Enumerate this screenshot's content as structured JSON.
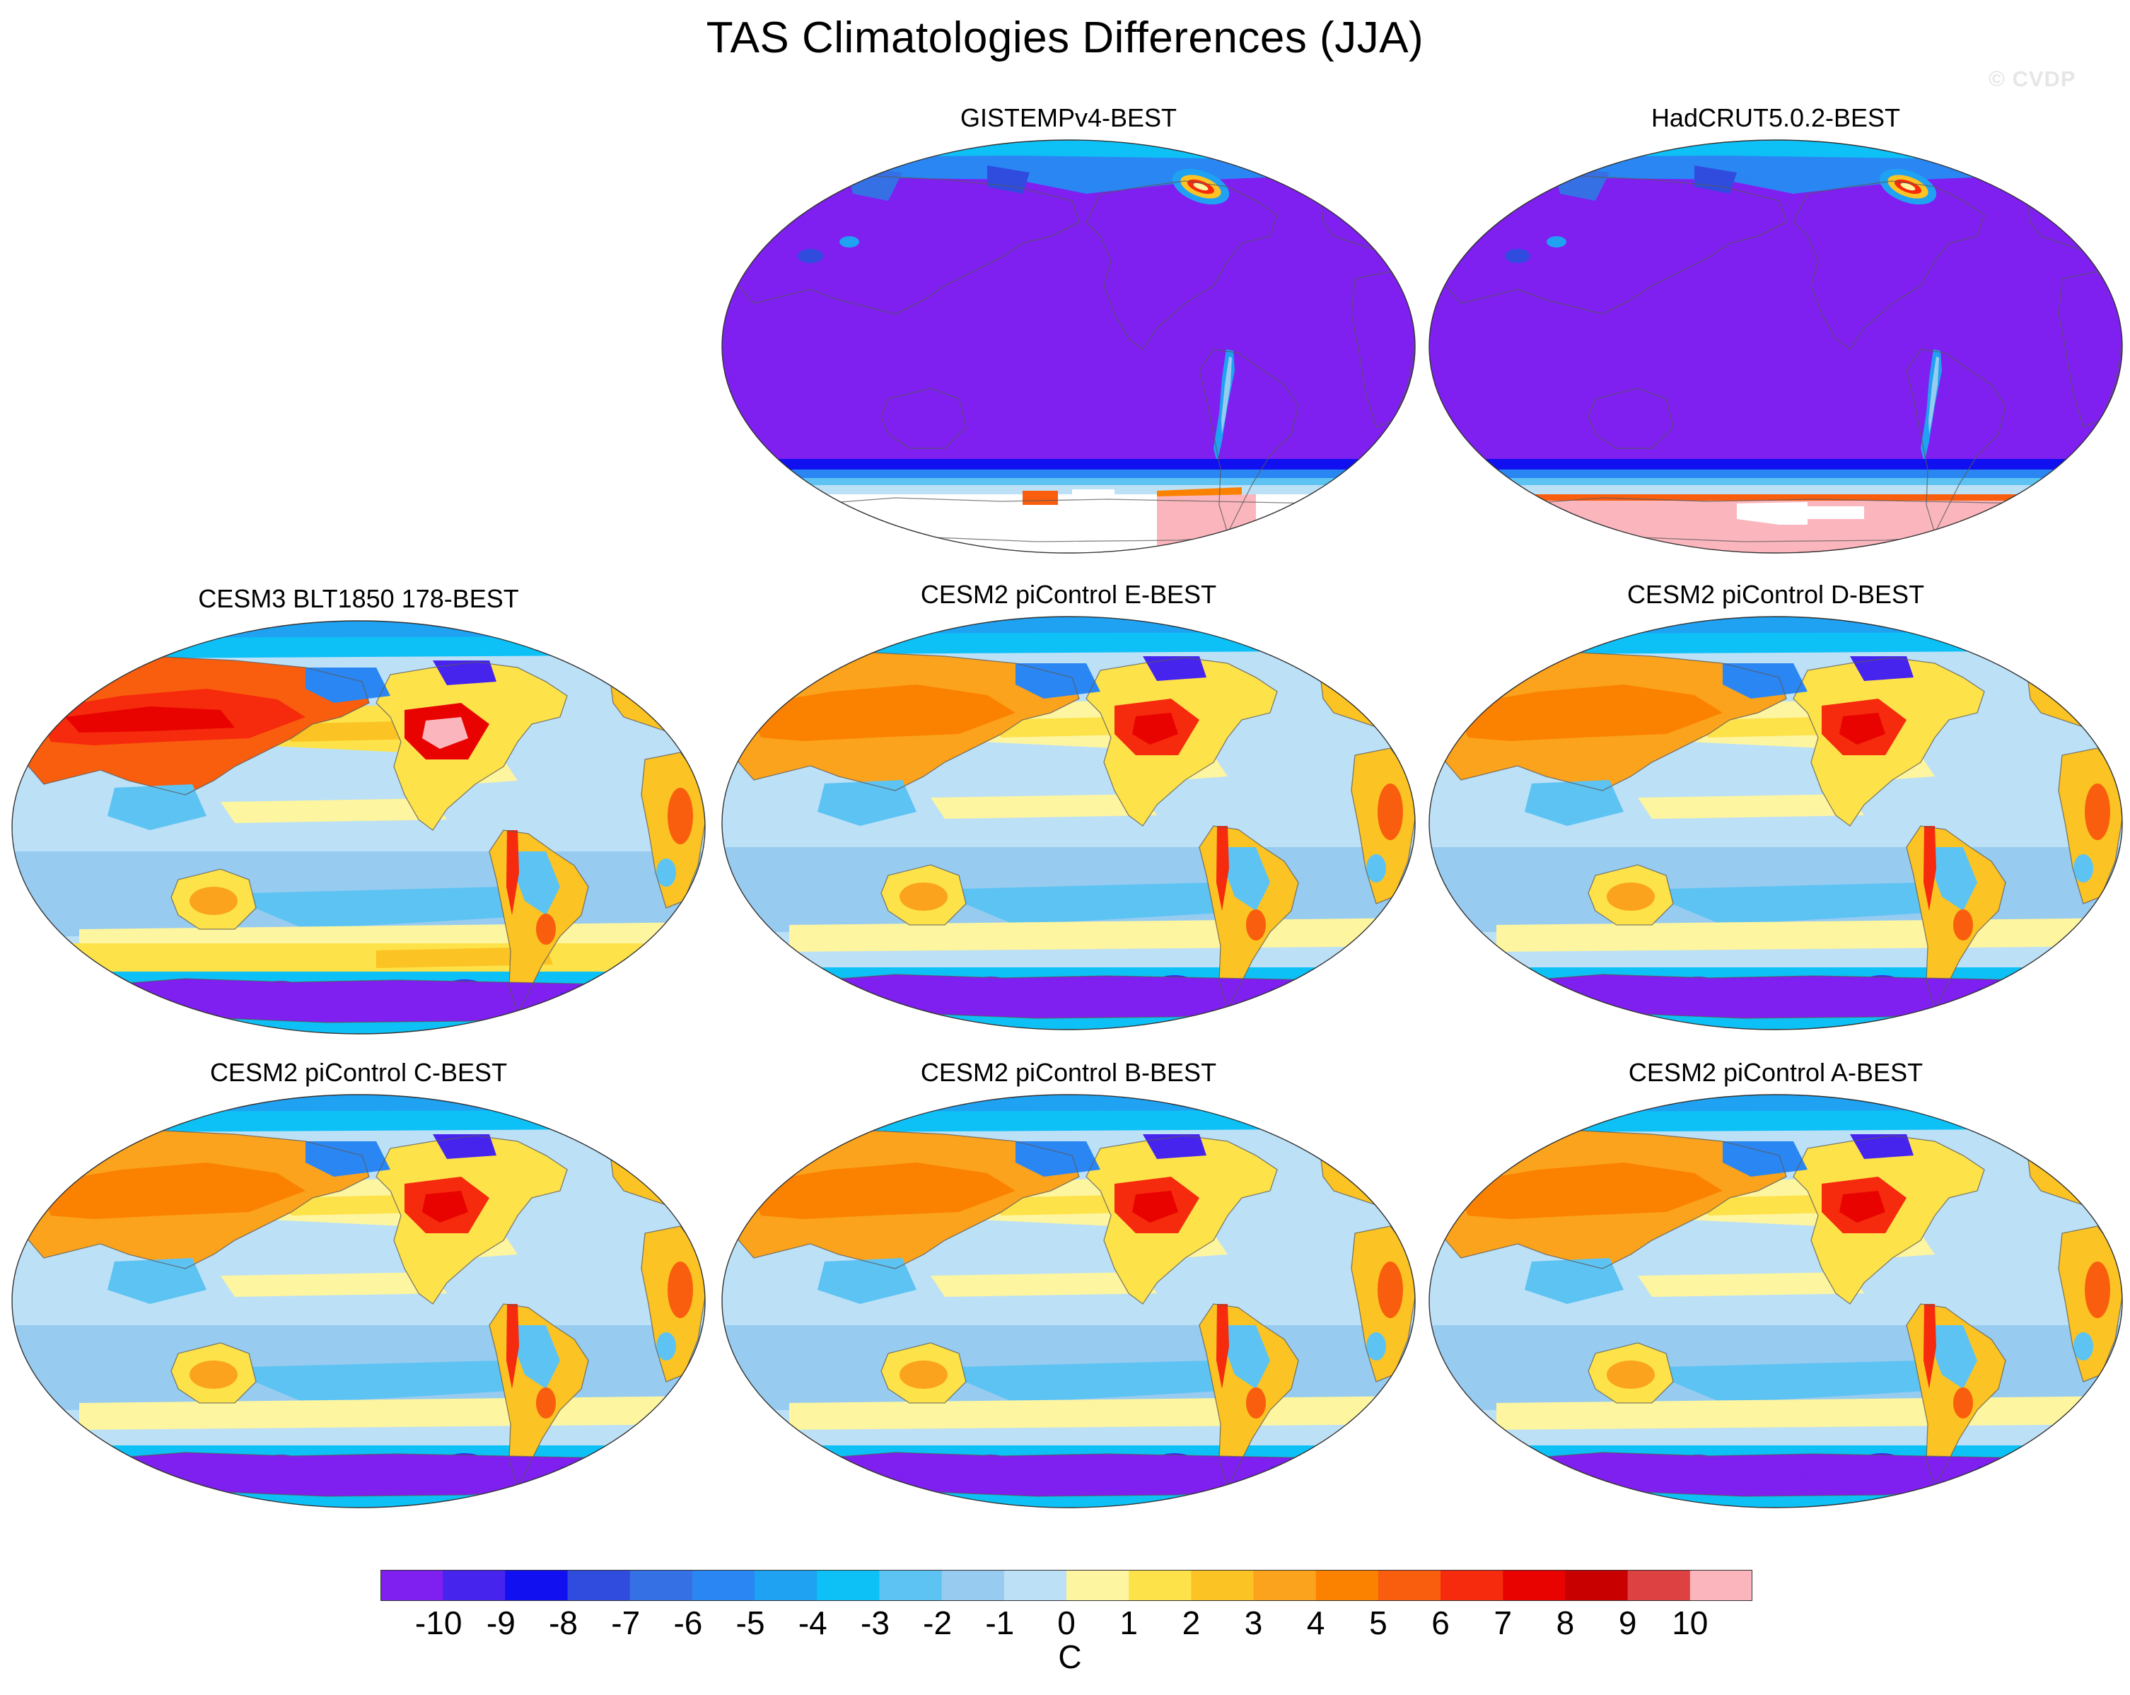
{
  "figure": {
    "title": "TAS Climatologies Differences (JJA)",
    "watermark": "© CVDP"
  },
  "panels": [
    {
      "id": "gistemp",
      "label": "GISTEMPv4-BEST",
      "style": "obs_gistemp"
    },
    {
      "id": "hadcrut",
      "label": "HadCRUT5.0.2-BEST",
      "style": "obs_hadcrut"
    },
    {
      "id": "cesm3",
      "label": "CESM3 BLT1850 178-BEST",
      "style": "model_warm"
    },
    {
      "id": "e",
      "label": "CESM2 piControl E-BEST",
      "style": "model"
    },
    {
      "id": "d",
      "label": "CESM2 piControl D-BEST",
      "style": "model"
    },
    {
      "id": "c",
      "label": "CESM2 piControl C-BEST",
      "style": "model"
    },
    {
      "id": "b",
      "label": "CESM2 piControl B-BEST",
      "style": "model"
    },
    {
      "id": "a",
      "label": "CESM2 piControl A-BEST",
      "style": "model"
    }
  ],
  "colorbar": {
    "unit": "C",
    "tick_labels": [
      "-10",
      "-9",
      "-8",
      "-7",
      "-6",
      "-5",
      "-4",
      "-3",
      "-2",
      "-1",
      "0",
      "1",
      "2",
      "3",
      "4",
      "5",
      "6",
      "7",
      "8",
      "9",
      "10"
    ],
    "colors": [
      "#7f1ff0",
      "#4624ee",
      "#1010f0",
      "#2f4cdf",
      "#3670e5",
      "#2a86f2",
      "#1fa2f2",
      "#0dc1f7",
      "#5dc3f3",
      "#97cbf0",
      "#bce0f6",
      "#fdf5a0",
      "#fde24a",
      "#fbc323",
      "#fba31c",
      "#fb8200",
      "#f95e0e",
      "#f62a0c",
      "#e80300",
      "#c90000",
      "#dd4141",
      "#fbb6bd"
    ]
  }
}
